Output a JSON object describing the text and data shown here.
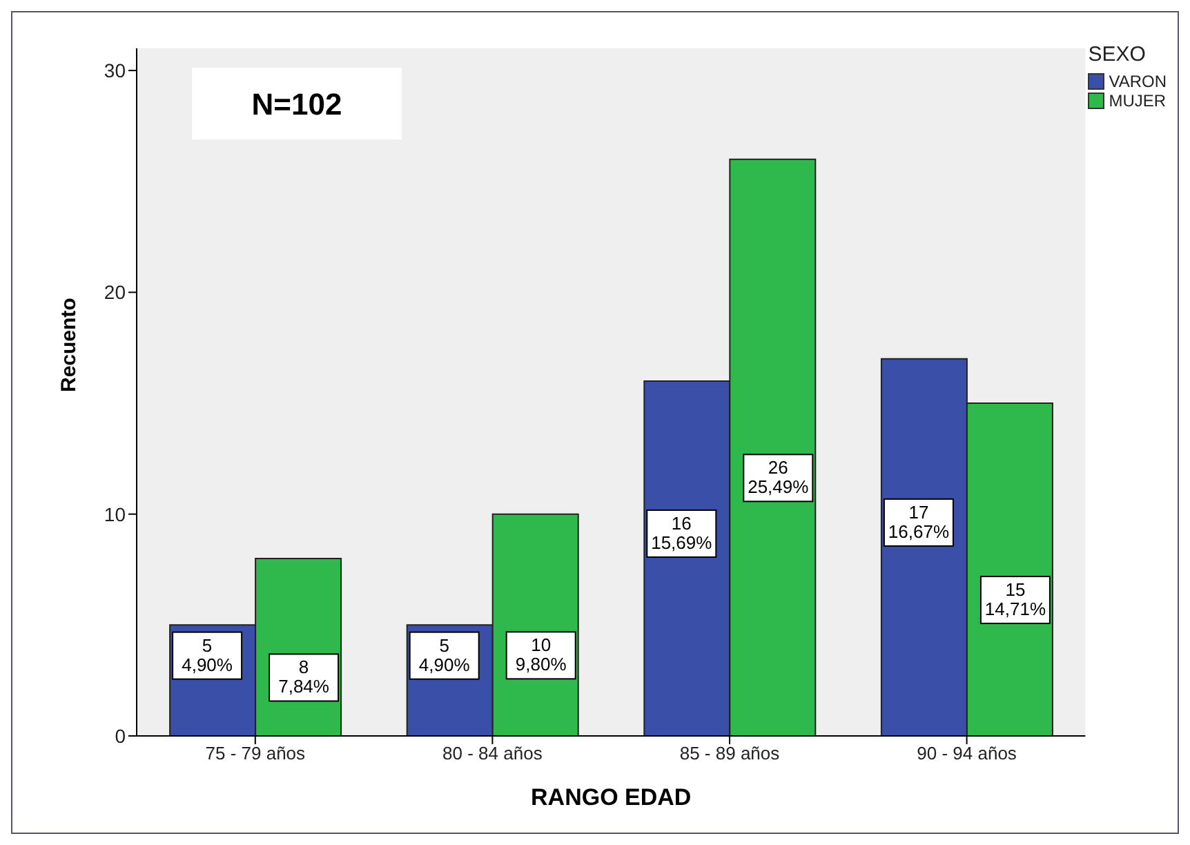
{
  "chart_data": {
    "type": "bar",
    "xlabel": "RANGO EDAD",
    "ylabel": "Recuento",
    "legend_title": "SEXO",
    "annotations": [
      "N=102"
    ],
    "categories": [
      "75 - 79 años",
      "80 - 84 años",
      "85 - 89 años",
      "90 - 94 años"
    ],
    "series": [
      {
        "name": "VARON",
        "color": "#3a4fa8",
        "values": [
          5,
          5,
          16,
          17
        ],
        "value_labels": [
          "5\n4,90%",
          "5\n4,90%",
          "16\n15,69%",
          "17\n16,67%"
        ]
      },
      {
        "name": "MUJER",
        "color": "#2fb84b",
        "values": [
          8,
          10,
          26,
          15
        ],
        "value_labels": [
          "8\n7,84%",
          "10\n9,80%",
          "26\n25,49%",
          "15\n14,71%"
        ]
      }
    ],
    "ylim": [
      0,
      31
    ],
    "yticks": [
      0,
      10,
      20,
      30
    ],
    "grid": false,
    "legend": "top right"
  }
}
